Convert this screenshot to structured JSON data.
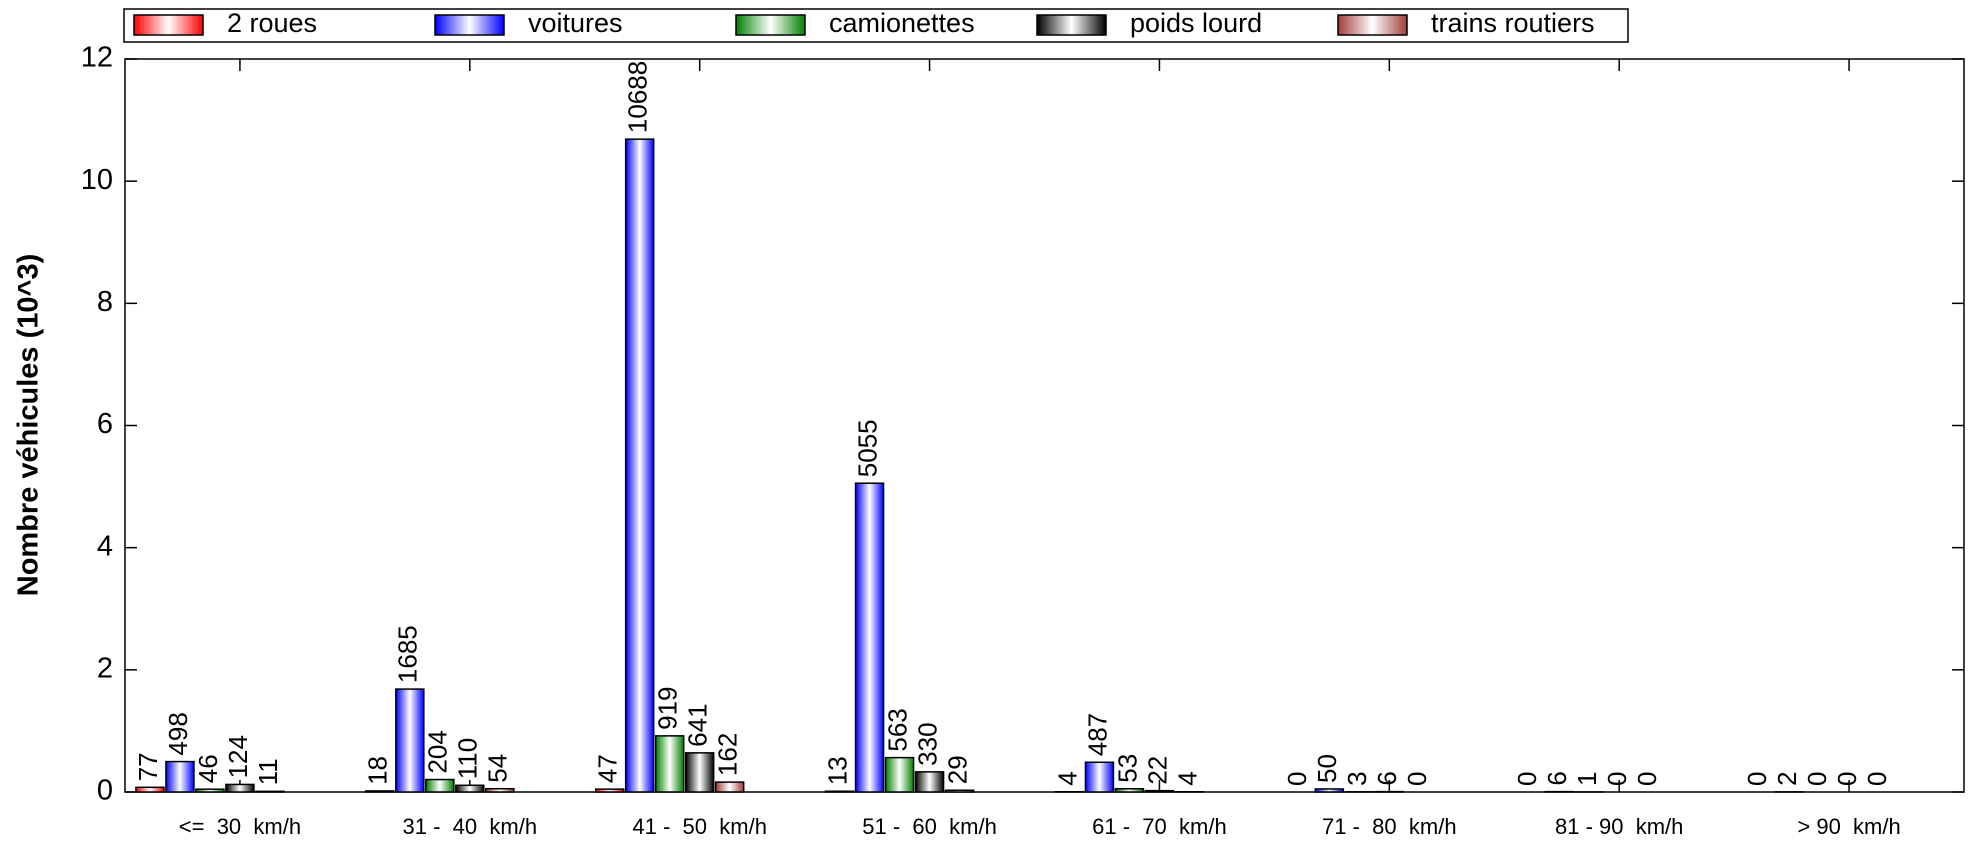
{
  "chart_data": {
    "type": "bar",
    "y_label": "Nombre véhicules (10^3)",
    "categories": [
      "<=  30  km/h",
      "31 -  40  km/h",
      "41 -  50  km/h",
      "51 -  60  km/h",
      "61 -  70  km/h",
      "71 -  80  km/h",
      "81 - 90  km/h",
      "> 90  km/h"
    ],
    "series": [
      {
        "name": "2 roues",
        "color": "#ff0000",
        "values": [
          0.077,
          0.018,
          0.047,
          0.013,
          0.004,
          0,
          0,
          0
        ],
        "value_labels": [
          "77",
          "18",
          "47",
          "13",
          "4",
          "0",
          "0",
          "0"
        ]
      },
      {
        "name": "voitures",
        "color": "#0000ff",
        "values": [
          0.498,
          1.685,
          10.688,
          5.055,
          0.487,
          0.05,
          0.006,
          0.002
        ],
        "value_labels": [
          "498",
          "1685",
          "10688",
          "5055",
          "487",
          "50",
          "6",
          "2"
        ]
      },
      {
        "name": "camionettes",
        "color": "#008000",
        "values": [
          0.046,
          0.204,
          0.919,
          0.563,
          0.053,
          0.003,
          0.001,
          0
        ],
        "value_labels": [
          "46",
          "204",
          "919",
          "563",
          "53",
          "3",
          "1",
          "0"
        ]
      },
      {
        "name": "poids lourd",
        "color": "#000000",
        "values": [
          0.124,
          0.11,
          0.641,
          0.33,
          0.022,
          0.006,
          0,
          0
        ],
        "value_labels": [
          "124",
          "110",
          "641",
          "330",
          "22",
          "6",
          "0",
          "0"
        ]
      },
      {
        "name": "trains routiers",
        "color": "#a03c3c",
        "values": [
          0.011,
          0.054,
          0.162,
          0.029,
          0.004,
          0,
          0,
          0
        ],
        "value_labels": [
          "11",
          "54",
          "162",
          "29",
          "4",
          "0",
          "0",
          "0"
        ]
      }
    ],
    "ylim": [
      0,
      12
    ],
    "yticks": [
      0,
      2,
      4,
      6,
      8,
      10,
      12
    ],
    "legend": "top"
  }
}
